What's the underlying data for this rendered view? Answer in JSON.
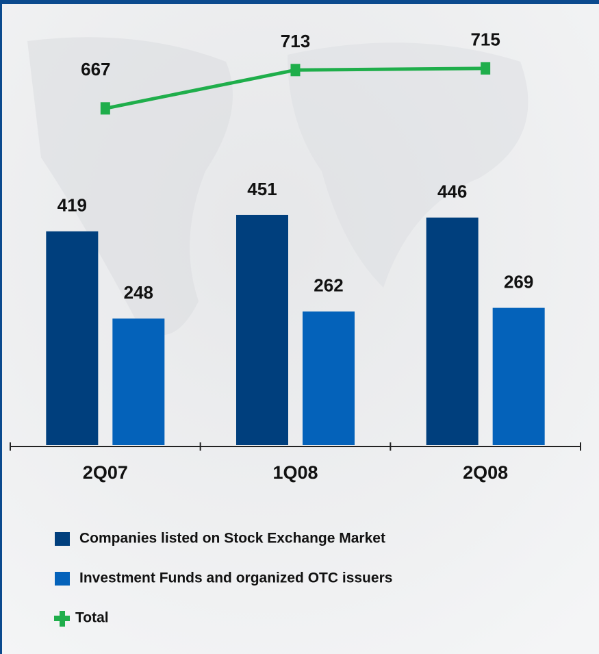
{
  "chart_data": {
    "type": "bar",
    "categories": [
      "2Q07",
      "1Q08",
      "2Q08"
    ],
    "series": [
      {
        "name": "Companies listed on Stock Exchange Market",
        "color": "#003f7d",
        "values": [
          419,
          451,
          446
        ]
      },
      {
        "name": "Investment Funds and organized OTC issuers",
        "color": "#0462ba",
        "values": [
          248,
          262,
          269
        ]
      },
      {
        "name": "Total",
        "type": "line",
        "axis": "y2",
        "color": "#1fae4b",
        "values": [
          667,
          713,
          715
        ]
      }
    ],
    "ylim": [
      0,
      820
    ],
    "y2lim": [
      263,
      765
    ],
    "legend": "bottom"
  }
}
